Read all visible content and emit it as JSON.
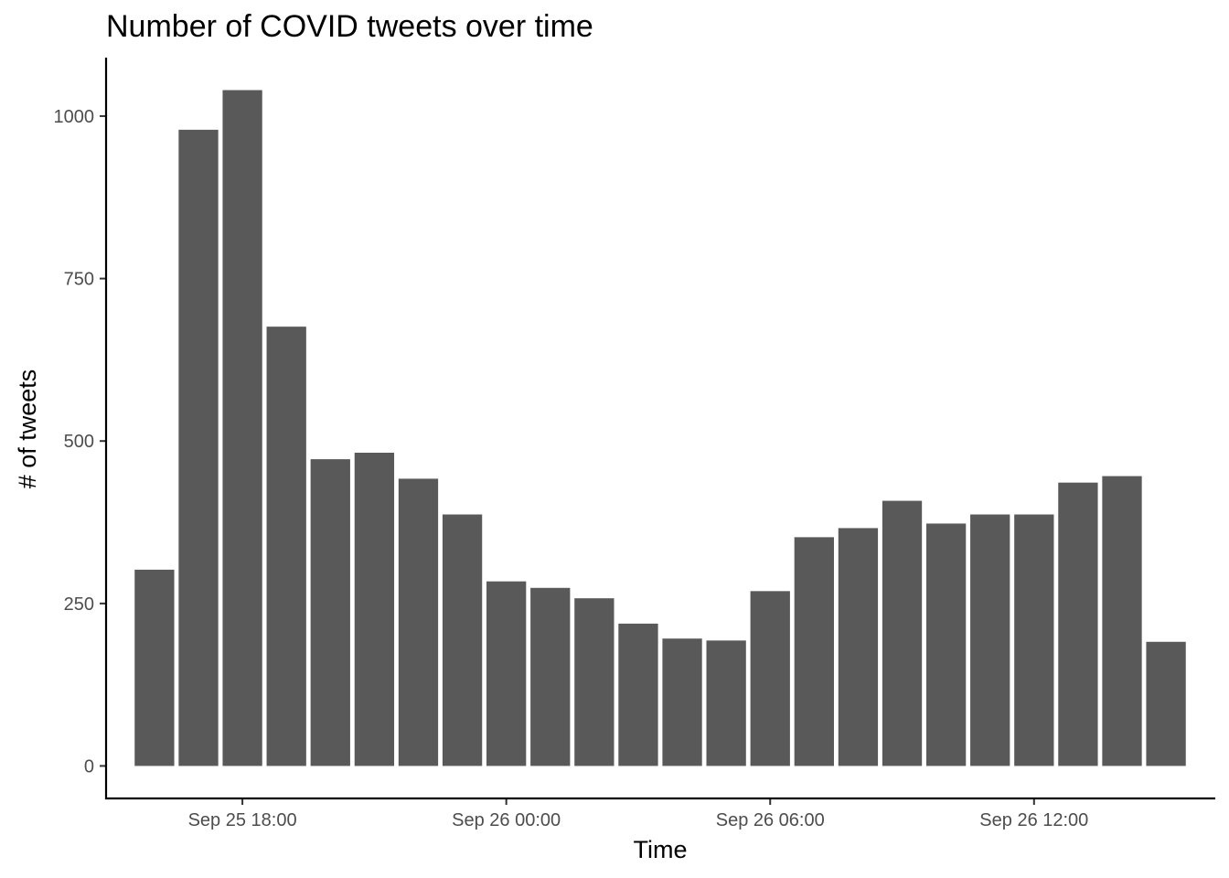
{
  "chart_data": {
    "type": "bar",
    "title": "Number of COVID tweets over time",
    "xlabel": "Time",
    "ylabel": "# of tweets",
    "bar_color": "#595959",
    "grid": false,
    "x": [
      "2020-09-25 16:00",
      "2020-09-25 17:00",
      "2020-09-25 18:00",
      "2020-09-25 19:00",
      "2020-09-25 20:00",
      "2020-09-25 21:00",
      "2020-09-25 22:00",
      "2020-09-25 23:00",
      "2020-09-26 00:00",
      "2020-09-26 01:00",
      "2020-09-26 02:00",
      "2020-09-26 03:00",
      "2020-09-26 04:00",
      "2020-09-26 05:00",
      "2020-09-26 06:00",
      "2020-09-26 07:00",
      "2020-09-26 08:00",
      "2020-09-26 09:00",
      "2020-09-26 10:00",
      "2020-09-26 11:00",
      "2020-09-26 12:00",
      "2020-09-26 13:00",
      "2020-09-26 14:00",
      "2020-09-26 15:00"
    ],
    "values": [
      302,
      979,
      1040,
      676,
      472,
      482,
      442,
      387,
      284,
      274,
      258,
      219,
      196,
      193,
      269,
      352,
      366,
      408,
      373,
      387,
      387,
      436,
      446,
      191
    ],
    "ylim": [
      -50,
      1090
    ],
    "yticks": [
      0,
      250,
      500,
      750,
      1000
    ],
    "ytick_labels": [
      "0",
      "250",
      "500",
      "750",
      "1000"
    ],
    "xticks": [
      {
        "at": "2020-09-25 18:00",
        "label": "Sep 25 18:00"
      },
      {
        "at": "2020-09-26 00:00",
        "label": "Sep 26 00:00"
      },
      {
        "at": "2020-09-26 06:00",
        "label": "Sep 26 06:00"
      },
      {
        "at": "2020-09-26 12:00",
        "label": "Sep 26 12:00"
      }
    ]
  }
}
